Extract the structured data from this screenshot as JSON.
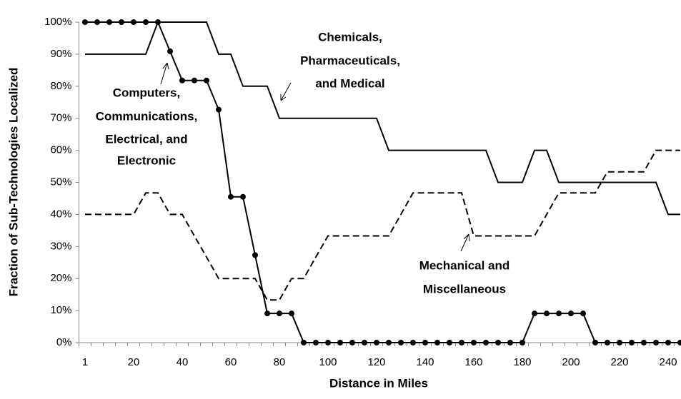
{
  "chart_data": {
    "type": "line",
    "x_label": "Distance in Miles",
    "y_label": "Fraction of Sub-Technologies Localized",
    "categories": [
      1,
      null,
      null,
      null,
      20,
      null,
      null,
      null,
      40,
      null,
      null,
      null,
      60,
      null,
      null,
      null,
      80,
      null,
      null,
      null,
      100,
      null,
      null,
      null,
      120,
      null,
      null,
      null,
      140,
      null,
      null,
      null,
      160,
      null,
      null,
      null,
      180,
      null,
      null,
      null,
      200,
      null,
      null,
      null,
      220,
      null,
      null,
      null,
      240,
      null
    ],
    "ylim": [
      0,
      100
    ],
    "yticks": [
      {
        "value": 0,
        "label": "0%"
      },
      {
        "value": 10,
        "label": "10%"
      },
      {
        "value": 20,
        "label": "20%"
      },
      {
        "value": 30,
        "label": "30%"
      },
      {
        "value": 40,
        "label": "40%"
      },
      {
        "value": 50,
        "label": "50%"
      },
      {
        "value": 60,
        "label": "60%"
      },
      {
        "value": 70,
        "label": "70%"
      },
      {
        "value": 80,
        "label": "80%"
      },
      {
        "value": 90,
        "label": "90%"
      },
      {
        "value": 100,
        "label": "100%"
      }
    ],
    "grid": false,
    "series": [
      {
        "name": "Chemicals, Pharmaceuticals, and Medical",
        "color": "#000000",
        "line_style": "solid",
        "marker": "none",
        "values": [
          90,
          90,
          90,
          90,
          90,
          90,
          100,
          100,
          100,
          100,
          100,
          90,
          90,
          80,
          80,
          80,
          70,
          70,
          70,
          70,
          70,
          70,
          70,
          70,
          70,
          60,
          60,
          60,
          60,
          60,
          60,
          60,
          60,
          60,
          50,
          50,
          50,
          60,
          60,
          50,
          50,
          50,
          50,
          50,
          50,
          50,
          50,
          50,
          40,
          40
        ]
      },
      {
        "name": "Computers, Communications, Electrical, and Electronic",
        "color": "#000000",
        "line_style": "solid",
        "marker": "circle",
        "values": [
          100,
          100,
          100,
          100,
          100,
          100,
          100,
          90.9,
          81.8,
          81.8,
          81.8,
          72.7,
          45.5,
          45.5,
          27.3,
          9.1,
          9.1,
          9.1,
          0,
          0,
          0,
          0,
          0,
          0,
          0,
          0,
          0,
          0,
          0,
          0,
          0,
          0,
          0,
          0,
          0,
          0,
          0,
          9.1,
          9.1,
          9.1,
          9.1,
          9.1,
          0,
          0,
          0,
          0,
          0,
          0,
          0,
          0
        ]
      },
      {
        "name": "Mechanical and Miscellaneous",
        "color": "#000000",
        "line_style": "dashed",
        "marker": "none",
        "values": [
          40,
          40,
          40,
          40,
          40,
          46.7,
          46.7,
          40,
          40,
          33.3,
          26.7,
          20,
          20,
          20,
          20,
          13.3,
          13.3,
          20,
          20,
          26.7,
          33.3,
          33.3,
          33.3,
          33.3,
          33.3,
          33.3,
          40,
          46.7,
          46.7,
          46.7,
          46.7,
          46.7,
          33.3,
          33.3,
          33.3,
          33.3,
          33.3,
          33.3,
          40,
          46.7,
          46.7,
          46.7,
          46.7,
          53.3,
          53.3,
          53.3,
          53.3,
          60,
          60,
          60
        ]
      }
    ],
    "annotations": [
      {
        "lines": [
          "Chemicals,",
          "Pharmaceuticals,",
          "and Medical"
        ]
      },
      {
        "lines": [
          "Computers,",
          "Communications,",
          "Electrical, and",
          "Electronic"
        ]
      },
      {
        "lines": [
          "Mechanical and",
          "Miscellaneous"
        ]
      }
    ]
  }
}
